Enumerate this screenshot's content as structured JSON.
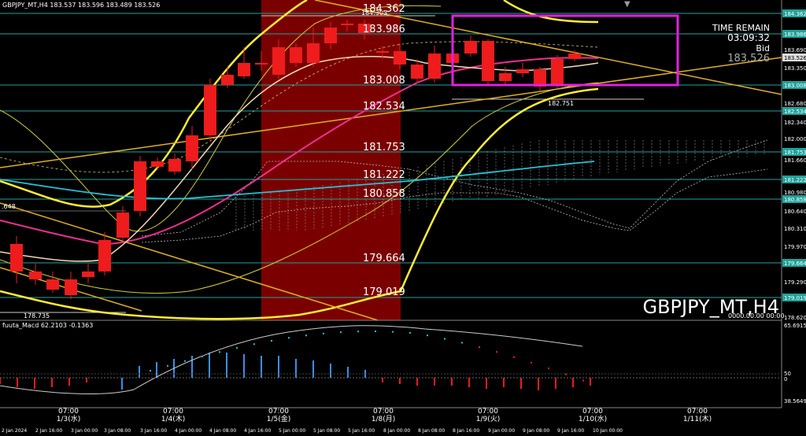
{
  "header": {
    "summary": "GBPJPY_MT,H4  183.537 183.596 183.489 183.526"
  },
  "indicator": {
    "title": "fuuta_Macd 62.2103  -0.1363",
    "axis_labels": [
      "65.6915",
      "50",
      "0",
      "38.5649"
    ]
  },
  "info_panel": {
    "label_time": "TIME REMAIN",
    "time_value": "03:09:32",
    "label_bid": "Bid",
    "bid_value": "183.526"
  },
  "symbol_label": "GBPJPY_MT,H4",
  "zero_label": "0000.00.00 00:00",
  "price_axis": {
    "labels": [
      "184.362",
      "183.986",
      "183.690",
      "183.526",
      "183.350",
      "183.008",
      "182.680",
      "182.534",
      "182.340",
      "182.000",
      "181.753",
      "181.660",
      "181.222",
      "180.980",
      "180.858",
      "180.640",
      "180.310",
      "179.970",
      "179.664",
      "179.290",
      "179.019",
      "178.620"
    ]
  },
  "level_labels": [
    "184.362",
    "183.986",
    "183.008",
    "182.534",
    "181.753",
    "181.222",
    "180.858",
    "179.664",
    "179.019"
  ],
  "marker_labels": {
    "high": "184.303",
    "low_right": "182.751",
    "low_left": "178.735",
    "left_edge": ".648"
  },
  "time_axis": {
    "top": [
      "07:00",
      "07:00",
      "07:00",
      "07:00",
      "07:00",
      "07:00",
      "07:00"
    ],
    "bottom": [
      "1/3(水)",
      "1/4(木)",
      "1/5(金)",
      "1/8(月)",
      "1/9(火)",
      "1/10(水)",
      "1/11(木)"
    ],
    "ticks": [
      "2 Jan 2024",
      "2 Jan 16:00",
      "3 Jan 00:00",
      "3 Jan 08:00",
      "3 Jan 16:00",
      "4 Jan 00:00",
      "4 Jan 08:00",
      "4 Jan 16:00",
      "5 Jan 00:00",
      "5 Jan 08:00",
      "5 Jan 16:00",
      "8 Jan 00:00",
      "8 Jan 08:00",
      "8 Jan 16:00",
      "9 Jan 00:00",
      "9 Jan 08:00",
      "9 Jan 16:00",
      "10 Jan 00:00"
    ]
  },
  "colors": {
    "bull": "#3b8fe8",
    "bear": "#ee1c1c",
    "shade": "#7a0000",
    "level": "#1fa39b",
    "highlight": "#e21fe0",
    "band": "#ffee33",
    "ma_pink": "#ee2f8f",
    "ma_cyan": "#27c0d6",
    "trend": "#e0b020"
  }
}
